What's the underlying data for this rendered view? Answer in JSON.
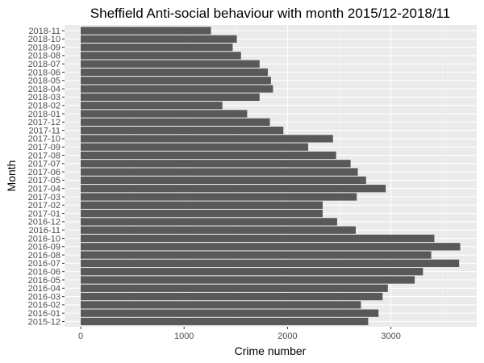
{
  "chart_data": {
    "type": "bar",
    "orientation": "horizontal",
    "title": "Sheffield Anti-social behaviour with month 2015/12-2018/11",
    "xlabel": "Crime number",
    "ylabel": "Month",
    "xlim": [
      0,
      3850
    ],
    "xticks": [
      0,
      1000,
      2000,
      3000
    ],
    "grid": true,
    "colors": {
      "bar": "#595959",
      "panel": "#ebebeb",
      "grid_major": "#ffffff",
      "grid_minor": "#f5f5f5"
    },
    "categories": [
      "2015-12",
      "2016-01",
      "2016-02",
      "2016-03",
      "2016-04",
      "2016-05",
      "2016-06",
      "2016-07",
      "2016-08",
      "2016-09",
      "2016-10",
      "2016-11",
      "2016-12",
      "2017-01",
      "2017-02",
      "2017-03",
      "2017-04",
      "2017-05",
      "2017-06",
      "2017-07",
      "2017-08",
      "2017-09",
      "2017-10",
      "2017-11",
      "2017-12",
      "2018-01",
      "2018-02",
      "2018-03",
      "2018-04",
      "2018-05",
      "2018-06",
      "2018-07",
      "2018-08",
      "2018-09",
      "2018-10",
      "2018-11"
    ],
    "values": [
      2780,
      2880,
      2710,
      2920,
      2970,
      3230,
      3310,
      3660,
      3390,
      3670,
      3420,
      2660,
      2480,
      2340,
      2340,
      2670,
      2950,
      2760,
      2680,
      2610,
      2470,
      2200,
      2440,
      1960,
      1830,
      1610,
      1370,
      1730,
      1860,
      1840,
      1810,
      1730,
      1550,
      1470,
      1510,
      1260
    ]
  }
}
